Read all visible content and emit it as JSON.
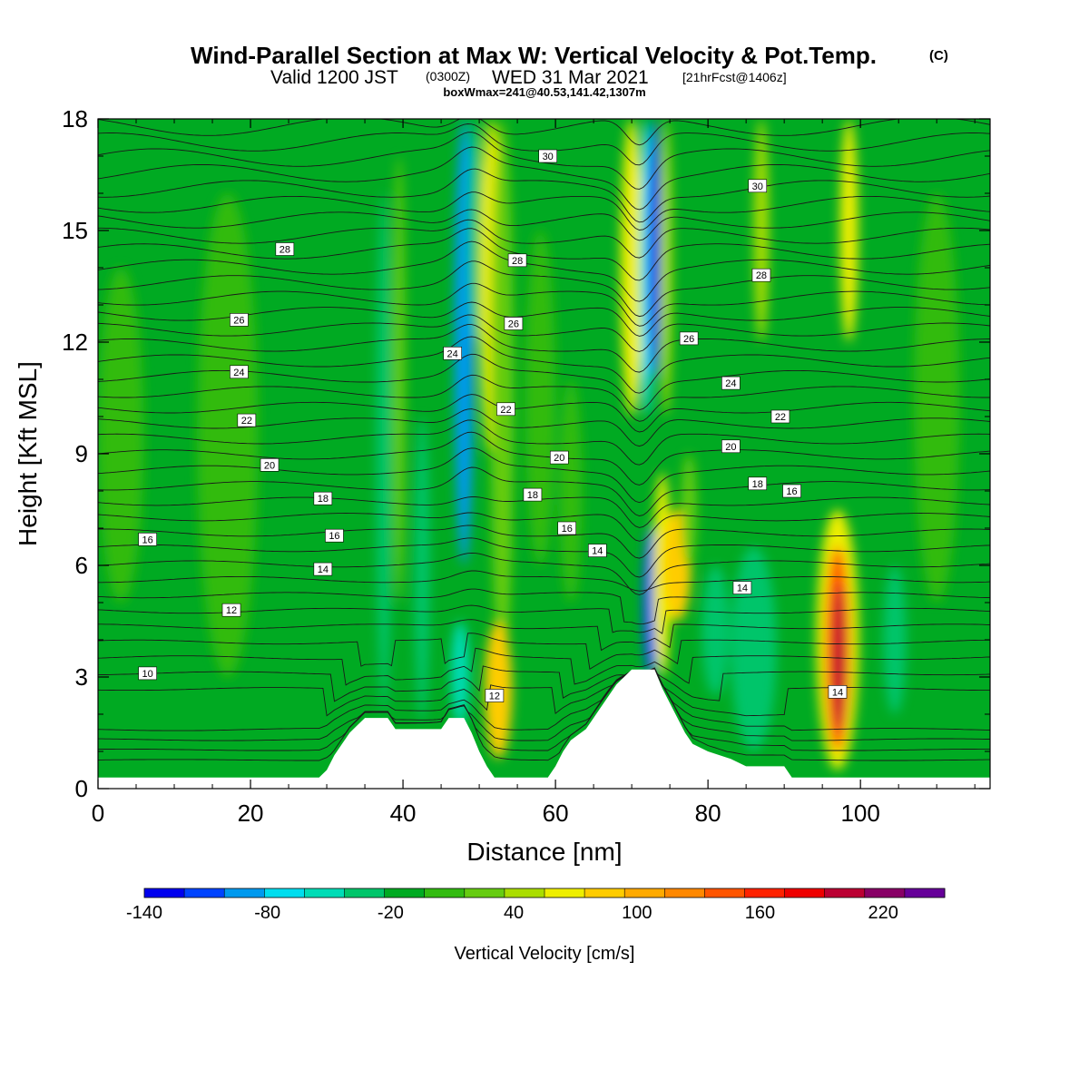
{
  "header": {
    "title": "Wind-Parallel Section at Max W: Vertical Velocity & Pot.Temp.",
    "title_mark": "(C)",
    "valid_a": "Valid 1200 JST",
    "valid_b": "(0300Z)",
    "valid_c": "WED 31 Mar 2021",
    "valid_d": "[21hrFcst@1406z]",
    "boxinfo": "boxWmax=241@40.53,141.42,1307m"
  },
  "chart_data": {
    "type": "heatmap",
    "xlabel": "Distance [nm]",
    "ylabel": "Height [Kft MSL]",
    "xlim": [
      0,
      117
    ],
    "ylim": [
      0,
      18
    ],
    "xticks": [
      0,
      20,
      40,
      60,
      80,
      100
    ],
    "yticks": [
      0,
      3,
      6,
      9,
      12,
      15,
      18
    ],
    "xtick_labels": [
      "0",
      "20",
      "40",
      "60",
      "80",
      "100"
    ],
    "ytick_labels": [
      "0",
      "3",
      "6",
      "9",
      "12",
      "15",
      "18"
    ],
    "colorbar": {
      "label": "Vertical Velocity [cm/s]",
      "min": -140,
      "max": 250,
      "step": 20,
      "tick_values": [
        -140,
        -80,
        -20,
        40,
        100,
        160,
        220
      ],
      "tick_labels": [
        "-140",
        "-80",
        "-20",
        "40",
        "100",
        "160",
        "220"
      ],
      "colors": [
        "#0000ee",
        "#0044ff",
        "#0099ee",
        "#00ddee",
        "#00dcb6",
        "#00c56a",
        "#00aa22",
        "#33bb11",
        "#66cc11",
        "#aadd00",
        "#eeee00",
        "#ffcc00",
        "#ffaa00",
        "#ff8800",
        "#ff5500",
        "#ff2200",
        "#ee0000",
        "#bb0033",
        "#880066",
        "#660099"
      ]
    },
    "background_color": "#00aa22",
    "terrain": [
      [
        0,
        0.3
      ],
      [
        29,
        0.3
      ],
      [
        30,
        0.5
      ],
      [
        31,
        0.9
      ],
      [
        32,
        1.2
      ],
      [
        33,
        1.5
      ],
      [
        34,
        1.7
      ],
      [
        35,
        1.9
      ],
      [
        38,
        1.9
      ],
      [
        39,
        1.6
      ],
      [
        45,
        1.6
      ],
      [
        46,
        1.9
      ],
      [
        48,
        1.9
      ],
      [
        49,
        1.5
      ],
      [
        50,
        1.0
      ],
      [
        51,
        0.6
      ],
      [
        52,
        0.3
      ],
      [
        59,
        0.3
      ],
      [
        60,
        0.6
      ],
      [
        61,
        1.0
      ],
      [
        62,
        1.3
      ],
      [
        64,
        1.6
      ],
      [
        65,
        1.9
      ],
      [
        66,
        2.2
      ],
      [
        67,
        2.5
      ],
      [
        68,
        2.8
      ],
      [
        69,
        3.0
      ],
      [
        70,
        3.2
      ],
      [
        73,
        3.2
      ],
      [
        74,
        2.7
      ],
      [
        75,
        2.3
      ],
      [
        76,
        1.9
      ],
      [
        77,
        1.5
      ],
      [
        78,
        1.2
      ],
      [
        80,
        1.0
      ],
      [
        83,
        0.8
      ],
      [
        85,
        0.6
      ],
      [
        90,
        0.6
      ],
      [
        91,
        0.3
      ],
      [
        117,
        0.3
      ]
    ],
    "w_features": [
      {
        "x": 48,
        "xw": 1.3,
        "y0": 6,
        "y1": 18,
        "v": -95
      },
      {
        "x": 49.5,
        "xw": 1.0,
        "y0": 12,
        "y1": 18,
        "v": -30
      },
      {
        "x": 51.5,
        "xw": 1.4,
        "y0": 9,
        "y1": 18,
        "v": 75
      },
      {
        "x": 53,
        "xw": 1.5,
        "y0": 3,
        "y1": 18,
        "v": 25
      },
      {
        "x": 52.5,
        "xw": 1.8,
        "y0": 0.8,
        "y1": 4.5,
        "v": 85
      },
      {
        "x": 47.5,
        "xw": 1.2,
        "y0": 1.7,
        "y1": 4.5,
        "v": -55
      },
      {
        "x": 37.5,
        "xw": 1.0,
        "y0": 2,
        "y1": 16,
        "v": -40
      },
      {
        "x": 39.5,
        "xw": 0.8,
        "y0": 5,
        "y1": 17,
        "v": 30
      },
      {
        "x": 42.5,
        "xw": 1.0,
        "y0": 1.8,
        "y1": 10,
        "v": -35
      },
      {
        "x": 70,
        "xw": 1.5,
        "y0": 10,
        "y1": 18,
        "v": 60
      },
      {
        "x": 72,
        "xw": 0.9,
        "y0": 10,
        "y1": 18,
        "v": -80
      },
      {
        "x": 73,
        "xw": 0.8,
        "y0": 11,
        "y1": 18,
        "v": -125
      },
      {
        "x": 74.5,
        "xw": 0.8,
        "y0": 10,
        "y1": 18,
        "v": 45
      },
      {
        "x": 72.5,
        "xw": 1.0,
        "y0": 3,
        "y1": 7,
        "v": -115
      },
      {
        "x": 74,
        "xw": 1.2,
        "y0": 3,
        "y1": 8.5,
        "v": 70
      },
      {
        "x": 76,
        "xw": 1.8,
        "y0": 4.5,
        "y1": 7.5,
        "v": 95
      },
      {
        "x": 77.5,
        "xw": 1.0,
        "y0": 6,
        "y1": 9,
        "v": 35
      },
      {
        "x": 81,
        "xw": 1.8,
        "y0": 2.5,
        "y1": 6,
        "v": -30
      },
      {
        "x": 86,
        "xw": 3.0,
        "y0": 1.0,
        "y1": 6.5,
        "v": -25
      },
      {
        "x": 87,
        "xw": 1.0,
        "y0": 12,
        "y1": 18,
        "v": 45
      },
      {
        "x": 98.5,
        "xw": 1.2,
        "y0": 12,
        "y1": 18,
        "v": 75
      },
      {
        "x": 97,
        "xw": 2.8,
        "y0": 0.5,
        "y1": 7.5,
        "v": 70
      },
      {
        "x": 97,
        "xw": 1.6,
        "y0": 1.0,
        "y1": 6.5,
        "v": 150
      },
      {
        "x": 97.2,
        "xw": 0.8,
        "y0": 1.5,
        "y1": 5.5,
        "v": 200
      },
      {
        "x": 3,
        "xw": 3,
        "y0": 5,
        "y1": 14,
        "v": 18
      },
      {
        "x": 17,
        "xw": 4,
        "y0": 3,
        "y1": 16,
        "v": 12
      },
      {
        "x": 58,
        "xw": 2,
        "y0": 6,
        "y1": 15,
        "v": 18
      },
      {
        "x": 62,
        "xw": 1.5,
        "y0": 5,
        "y1": 11,
        "v": 15
      },
      {
        "x": 110,
        "xw": 3,
        "y0": 5,
        "y1": 16,
        "v": 15
      },
      {
        "x": 104.5,
        "xw": 1.5,
        "y0": 2,
        "y1": 6,
        "v": -25
      }
    ],
    "theta_contours": [
      10,
      12,
      14,
      16,
      18,
      20,
      22,
      24,
      26,
      28,
      30
    ],
    "contour_labels": [
      {
        "x": 6.5,
        "y": 3.1,
        "text": "10"
      },
      {
        "x": 17.5,
        "y": 4.8,
        "text": "12"
      },
      {
        "x": 29.5,
        "y": 5.9,
        "text": "14"
      },
      {
        "x": 65.5,
        "y": 6.4,
        "text": "14"
      },
      {
        "x": 84.5,
        "y": 5.4,
        "text": "14"
      },
      {
        "x": 97,
        "y": 2.6,
        "text": "14"
      },
      {
        "x": 52,
        "y": 2.5,
        "text": "12"
      },
      {
        "x": 6.5,
        "y": 6.7,
        "text": "16"
      },
      {
        "x": 31,
        "y": 6.8,
        "text": "16"
      },
      {
        "x": 61.5,
        "y": 7.0,
        "text": "16"
      },
      {
        "x": 91,
        "y": 8.0,
        "text": "16"
      },
      {
        "x": 29.5,
        "y": 7.8,
        "text": "18"
      },
      {
        "x": 57,
        "y": 7.9,
        "text": "18"
      },
      {
        "x": 86.5,
        "y": 8.2,
        "text": "18"
      },
      {
        "x": 22.5,
        "y": 8.7,
        "text": "20"
      },
      {
        "x": 60.5,
        "y": 8.9,
        "text": "20"
      },
      {
        "x": 83,
        "y": 9.2,
        "text": "20"
      },
      {
        "x": 19.5,
        "y": 9.9,
        "text": "22"
      },
      {
        "x": 53.5,
        "y": 10.2,
        "text": "22"
      },
      {
        "x": 89.5,
        "y": 10.0,
        "text": "22"
      },
      {
        "x": 18.5,
        "y": 11.2,
        "text": "24"
      },
      {
        "x": 46.5,
        "y": 11.7,
        "text": "24"
      },
      {
        "x": 83,
        "y": 10.9,
        "text": "24"
      },
      {
        "x": 18.5,
        "y": 12.6,
        "text": "26"
      },
      {
        "x": 54.5,
        "y": 12.5,
        "text": "26"
      },
      {
        "x": 77.5,
        "y": 12.1,
        "text": "26"
      },
      {
        "x": 24.5,
        "y": 14.5,
        "text": "28"
      },
      {
        "x": 55,
        "y": 14.2,
        "text": "28"
      },
      {
        "x": 87,
        "y": 13.8,
        "text": "28"
      },
      {
        "x": 59,
        "y": 17.0,
        "text": "30"
      },
      {
        "x": 86.5,
        "y": 16.2,
        "text": "30"
      }
    ]
  }
}
